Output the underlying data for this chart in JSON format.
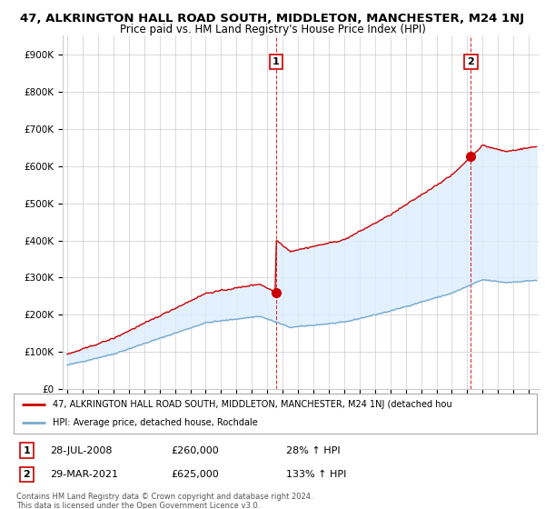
{
  "title": "47, ALKRINGTON HALL ROAD SOUTH, MIDDLETON, MANCHESTER, M24 1NJ",
  "subtitle": "Price paid vs. HM Land Registry's House Price Index (HPI)",
  "ylabel_ticks": [
    "£0",
    "£100K",
    "£200K",
    "£300K",
    "£400K",
    "£500K",
    "£600K",
    "£700K",
    "£800K",
    "£900K"
  ],
  "ytick_values": [
    0,
    100000,
    200000,
    300000,
    400000,
    500000,
    600000,
    700000,
    800000,
    900000
  ],
  "ylim": [
    0,
    950000
  ],
  "year_start": 1995,
  "year_end": 2025,
  "red_line_color": "#cc0000",
  "blue_line_color": "#77aacc",
  "fill_color": "#ddeeff",
  "dashed_line_color": "#cc0000",
  "marker1_year": 2008.57,
  "marker1_value": 260000,
  "marker1_label": "1",
  "marker2_year": 2021.24,
  "marker2_value": 625000,
  "marker2_label": "2",
  "annotation1_date": "28-JUL-2008",
  "annotation1_price": "£260,000",
  "annotation1_hpi": "28% ↑ HPI",
  "annotation2_date": "29-MAR-2021",
  "annotation2_price": "£625,000",
  "annotation2_hpi": "133% ↑ HPI",
  "legend_red": "47, ALKRINGTON HALL ROAD SOUTH, MIDDLETON, MANCHESTER, M24 1NJ (detached hou",
  "legend_blue": "HPI: Average price, detached house, Rochdale",
  "footer": "Contains HM Land Registry data © Crown copyright and database right 2024.\nThis data is licensed under the Open Government Licence v3.0.",
  "bg_color": "#ffffff",
  "grid_color": "#cccccc",
  "title_fontsize": 9.5,
  "subtitle_fontsize": 8.5
}
